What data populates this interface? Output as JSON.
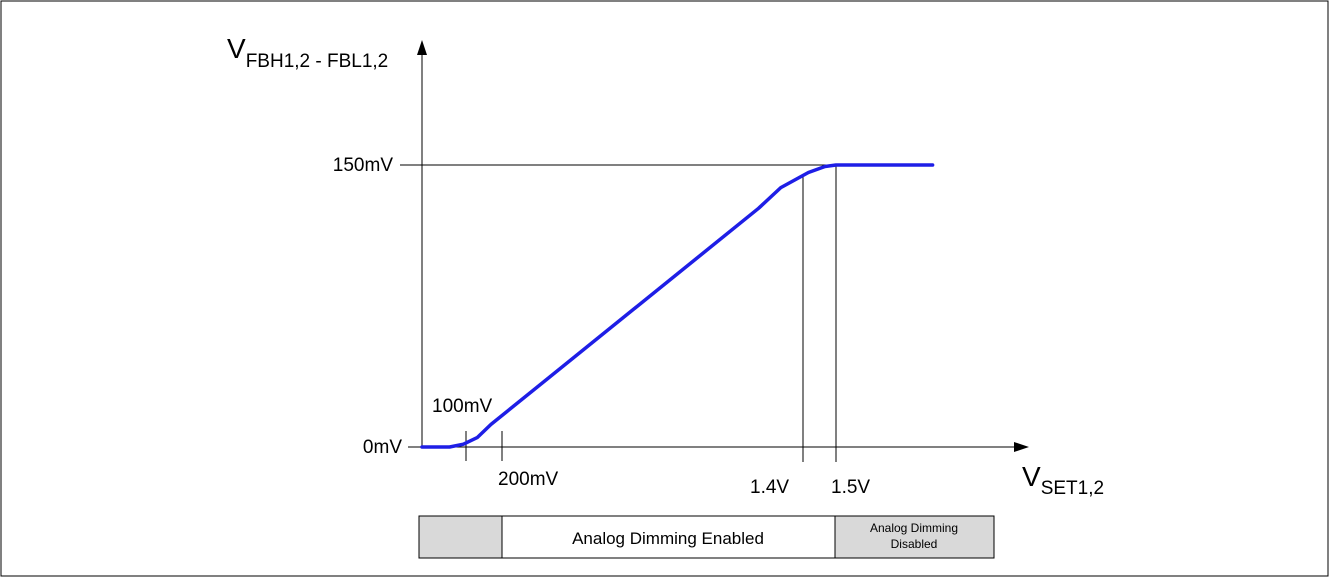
{
  "chart_data": {
    "type": "line",
    "title": "",
    "ylabel": {
      "main": "V",
      "sub": "FBH1,2 - FBL1,2"
    },
    "xlabel": {
      "main": "V",
      "sub": "SET1,2"
    },
    "y_ticks": [
      "0mV",
      "150mV"
    ],
    "x_markers": [
      "100mV",
      "200mV",
      "1.4V",
      "1.5V"
    ],
    "series": [
      {
        "x_v": [
          0.0,
          0.06,
          0.1,
          0.15,
          0.2,
          0.25,
          1.22,
          1.3,
          1.4,
          1.46,
          1.5,
          1.85
        ],
        "y_mv": [
          0,
          0,
          0,
          1.5,
          5,
          12,
          127,
          138,
          146,
          149.2,
          150,
          150
        ],
        "color": "#1e1ee6"
      }
    ],
    "regions": [
      {
        "label": "",
        "fill": "#d9d9d9"
      },
      {
        "label": "Analog Dimming Enabled",
        "fill": "#ffffff"
      },
      {
        "label": "Analog Dimming\nDisabled",
        "fill": "#d9d9d9"
      }
    ]
  }
}
